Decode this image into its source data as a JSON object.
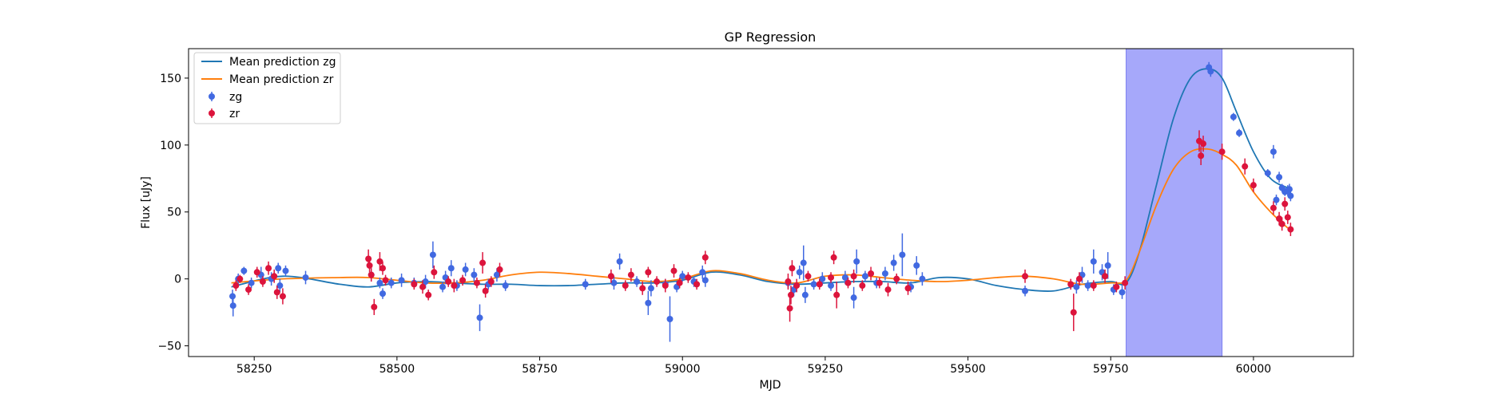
{
  "chart_data": {
    "type": "scatter",
    "title": "GP Regression",
    "xlabel": "MJD",
    "ylabel": "Flux [uJy]",
    "xlim": [
      58135,
      60175
    ],
    "ylim": [
      -58,
      172
    ],
    "x_ticks": [
      58250,
      58500,
      58750,
      59000,
      59250,
      59500,
      59750,
      60000
    ],
    "y_ticks": [
      -50,
      0,
      50,
      100,
      150
    ],
    "grid": false,
    "legend_position": "top-left",
    "highlight_span": {
      "x0": 59777,
      "x1": 59945,
      "color": "#a6a8fa"
    },
    "lines": [
      {
        "name": "Mean prediction zg",
        "color": "#1f77b4",
        "x": [
          58210,
          58300,
          58400,
          58450,
          58500,
          58550,
          58600,
          58650,
          58700,
          58750,
          58800,
          58850,
          58900,
          58950,
          59000,
          59050,
          59100,
          59150,
          59200,
          59250,
          59300,
          59350,
          59400,
          59450,
          59500,
          59550,
          59600,
          59650,
          59700,
          59750,
          59777,
          59800,
          59830,
          59860,
          59890,
          59920,
          59945,
          59970,
          60000,
          60030,
          60060
        ],
        "y": [
          -6,
          2,
          -4,
          -6,
          -3,
          -2,
          -3,
          -4,
          -4,
          -5,
          -5,
          -4,
          -3,
          -3,
          -1,
          5,
          3,
          -2,
          -4,
          -3,
          -2,
          -2,
          -3,
          1,
          0,
          -5,
          -8,
          -9,
          -4,
          -2,
          -3,
          20,
          70,
          120,
          150,
          157,
          150,
          125,
          95,
          75,
          68
        ]
      },
      {
        "name": "Mean prediction zr",
        "color": "#ff7f0e",
        "x": [
          58210,
          58300,
          58400,
          58450,
          58500,
          58550,
          58600,
          58650,
          58700,
          58750,
          58800,
          58850,
          58900,
          58950,
          59000,
          59050,
          59100,
          59150,
          59200,
          59250,
          59300,
          59350,
          59400,
          59450,
          59500,
          59550,
          59600,
          59650,
          59700,
          59750,
          59777,
          59800,
          59830,
          59860,
          59890,
          59920,
          59945,
          59970,
          60000,
          60030,
          60060
        ],
        "y": [
          -3,
          0,
          1,
          1,
          -1,
          -3,
          -3,
          -1,
          3,
          5,
          4,
          2,
          0,
          -2,
          0,
          6,
          4,
          -1,
          -3,
          2,
          3,
          1,
          -1,
          -2,
          -1,
          1,
          2,
          0,
          -4,
          -3,
          -1,
          20,
          55,
          82,
          95,
          97,
          93,
          85,
          65,
          50,
          38
        ]
      }
    ],
    "series": [
      {
        "name": "zg",
        "color": "#4169e1",
        "points": [
          [
            58212,
            -13,
            5
          ],
          [
            58213,
            -20,
            8
          ],
          [
            58222,
            0,
            4
          ],
          [
            58232,
            6,
            3
          ],
          [
            58245,
            -3,
            4
          ],
          [
            58262,
            3,
            6
          ],
          [
            58280,
            0,
            5
          ],
          [
            58292,
            8,
            4
          ],
          [
            58295,
            -5,
            5
          ],
          [
            58305,
            6,
            4
          ],
          [
            58340,
            1,
            5
          ],
          [
            58455,
            3,
            5
          ],
          [
            58470,
            -3,
            4
          ],
          [
            58475,
            -11,
            4
          ],
          [
            58490,
            -3,
            4
          ],
          [
            58508,
            -1,
            5
          ],
          [
            58530,
            -3,
            4
          ],
          [
            58550,
            -2,
            5
          ],
          [
            58563,
            18,
            10
          ],
          [
            58580,
            -6,
            4
          ],
          [
            58585,
            1,
            5
          ],
          [
            58595,
            8,
            6
          ],
          [
            58605,
            -5,
            4
          ],
          [
            58620,
            7,
            5
          ],
          [
            58635,
            3,
            5
          ],
          [
            58645,
            -29,
            10
          ],
          [
            58660,
            -4,
            4
          ],
          [
            58675,
            3,
            5
          ],
          [
            58690,
            -5,
            4
          ],
          [
            58830,
            -4,
            4
          ],
          [
            58880,
            -3,
            5
          ],
          [
            58890,
            13,
            6
          ],
          [
            58920,
            -2,
            4
          ],
          [
            58940,
            -18,
            9
          ],
          [
            58945,
            -7,
            6
          ],
          [
            58970,
            -4,
            4
          ],
          [
            58978,
            -30,
            17
          ],
          [
            58990,
            -6,
            4
          ],
          [
            59000,
            2,
            4
          ],
          [
            59020,
            -2,
            4
          ],
          [
            59035,
            5,
            5
          ],
          [
            59040,
            -1,
            5
          ],
          [
            59185,
            -3,
            4
          ],
          [
            59195,
            -8,
            5
          ],
          [
            59205,
            5,
            5
          ],
          [
            59212,
            12,
            13
          ],
          [
            59215,
            -12,
            6
          ],
          [
            59230,
            -4,
            4
          ],
          [
            59245,
            0,
            5
          ],
          [
            59260,
            -5,
            4
          ],
          [
            59285,
            1,
            5
          ],
          [
            59300,
            -14,
            8
          ],
          [
            59305,
            13,
            9
          ],
          [
            59320,
            2,
            4
          ],
          [
            59340,
            -3,
            4
          ],
          [
            59355,
            4,
            5
          ],
          [
            59370,
            12,
            6
          ],
          [
            59385,
            18,
            16
          ],
          [
            59400,
            -6,
            4
          ],
          [
            59410,
            10,
            7
          ],
          [
            59420,
            0,
            5
          ],
          [
            59600,
            -9,
            4
          ],
          [
            59690,
            -6,
            5
          ],
          [
            59700,
            3,
            6
          ],
          [
            59710,
            -5,
            4
          ],
          [
            59720,
            13,
            9
          ],
          [
            59735,
            5,
            6
          ],
          [
            59745,
            10,
            10
          ],
          [
            59755,
            -8,
            4
          ],
          [
            59770,
            -10,
            5
          ],
          [
            59922,
            158,
            4
          ],
          [
            59925,
            155,
            4
          ],
          [
            59965,
            121,
            3
          ],
          [
            59975,
            109,
            3
          ],
          [
            60025,
            79,
            3
          ],
          [
            60035,
            95,
            5
          ],
          [
            60040,
            59,
            4
          ],
          [
            60045,
            76,
            4
          ],
          [
            60050,
            68,
            3
          ],
          [
            60055,
            65,
            3
          ],
          [
            60060,
            66,
            4
          ],
          [
            60065,
            62,
            4
          ],
          [
            60063,
            67,
            4
          ]
        ]
      },
      {
        "name": "zr",
        "color": "#dc143c",
        "points": [
          [
            58218,
            -5,
            4
          ],
          [
            58225,
            0,
            3
          ],
          [
            58240,
            -8,
            4
          ],
          [
            58255,
            5,
            4
          ],
          [
            58265,
            -2,
            4
          ],
          [
            58275,
            8,
            5
          ],
          [
            58285,
            2,
            5
          ],
          [
            58290,
            -10,
            5
          ],
          [
            58300,
            -13,
            6
          ],
          [
            58450,
            15,
            7
          ],
          [
            58452,
            10,
            5
          ],
          [
            58455,
            3,
            5
          ],
          [
            58460,
            -21,
            6
          ],
          [
            58470,
            13,
            7
          ],
          [
            58475,
            8,
            5
          ],
          [
            58480,
            -1,
            4
          ],
          [
            58530,
            -4,
            4
          ],
          [
            58545,
            -6,
            5
          ],
          [
            58555,
            -12,
            4
          ],
          [
            58565,
            5,
            5
          ],
          [
            58590,
            -2,
            4
          ],
          [
            58600,
            -5,
            5
          ],
          [
            58615,
            -1,
            4
          ],
          [
            58640,
            -3,
            4
          ],
          [
            58650,
            12,
            8
          ],
          [
            58655,
            -9,
            5
          ],
          [
            58665,
            -2,
            4
          ],
          [
            58680,
            7,
            5
          ],
          [
            58875,
            2,
            5
          ],
          [
            58900,
            -5,
            4
          ],
          [
            58910,
            3,
            5
          ],
          [
            58930,
            -7,
            5
          ],
          [
            58940,
            5,
            4
          ],
          [
            58955,
            -2,
            4
          ],
          [
            58970,
            -5,
            5
          ],
          [
            58985,
            6,
            5
          ],
          [
            58995,
            -3,
            4
          ],
          [
            59010,
            1,
            4
          ],
          [
            59025,
            -4,
            4
          ],
          [
            59040,
            16,
            5
          ],
          [
            59185,
            -2,
            6
          ],
          [
            59188,
            -22,
            10
          ],
          [
            59190,
            -12,
            7
          ],
          [
            59192,
            8,
            6
          ],
          [
            59200,
            -5,
            5
          ],
          [
            59220,
            2,
            4
          ],
          [
            59240,
            -4,
            4
          ],
          [
            59260,
            1,
            4
          ],
          [
            59265,
            16,
            5
          ],
          [
            59270,
            -12,
            10
          ],
          [
            59290,
            -3,
            4
          ],
          [
            59300,
            2,
            5
          ],
          [
            59315,
            -5,
            4
          ],
          [
            59330,
            4,
            5
          ],
          [
            59345,
            -3,
            4
          ],
          [
            59360,
            -8,
            5
          ],
          [
            59375,
            0,
            4
          ],
          [
            59395,
            -7,
            5
          ],
          [
            59600,
            2,
            5
          ],
          [
            59680,
            -4,
            4
          ],
          [
            59685,
            -25,
            14
          ],
          [
            59695,
            0,
            5
          ],
          [
            59720,
            -5,
            4
          ],
          [
            59740,
            2,
            5
          ],
          [
            59760,
            -6,
            4
          ],
          [
            59775,
            -3,
            5
          ],
          [
            59905,
            103,
            8
          ],
          [
            59908,
            92,
            7
          ],
          [
            59912,
            101,
            6
          ],
          [
            59945,
            95,
            6
          ],
          [
            59985,
            84,
            6
          ],
          [
            60000,
            70,
            5
          ],
          [
            60035,
            53,
            5
          ],
          [
            60045,
            45,
            5
          ],
          [
            60050,
            41,
            5
          ],
          [
            60055,
            56,
            5
          ],
          [
            60060,
            46,
            5
          ],
          [
            60065,
            37,
            5
          ]
        ]
      }
    ]
  }
}
